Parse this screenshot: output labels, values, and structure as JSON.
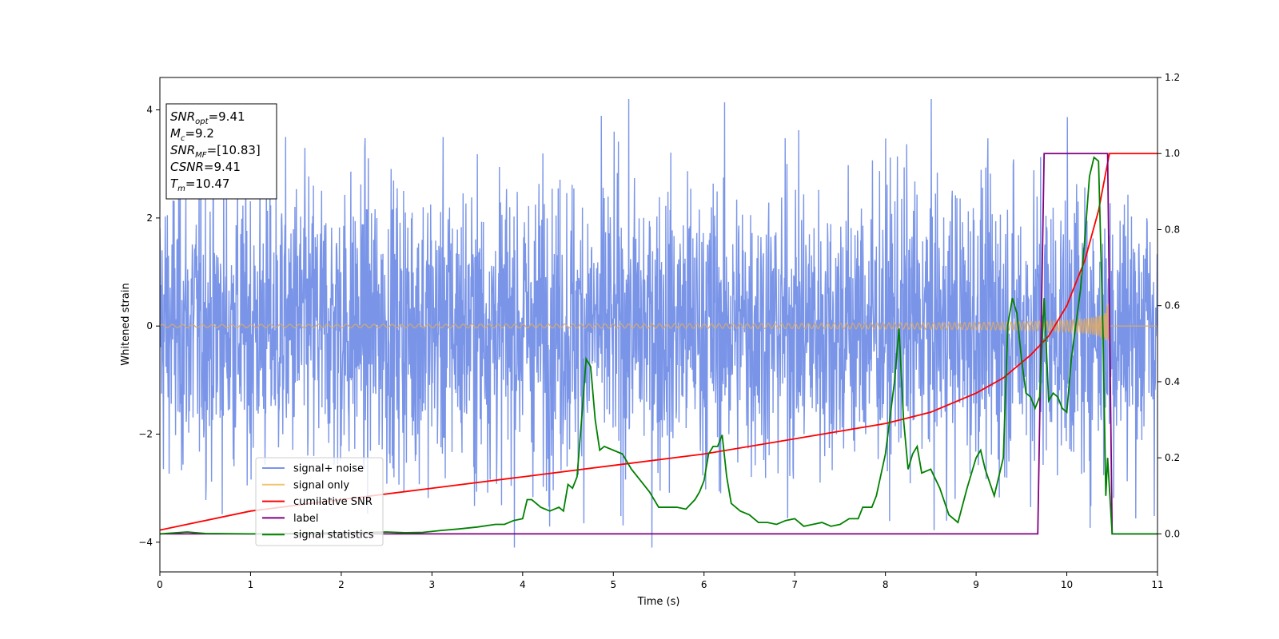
{
  "chart_data": {
    "type": "line",
    "xlabel": "Time (s)",
    "ylabel": "Whitened strain",
    "xlim": [
      0,
      11
    ],
    "ylim_left": [
      -4.55,
      4.6
    ],
    "ylim_right": [
      -0.1,
      1.2
    ],
    "x_ticks": [
      0,
      1,
      2,
      3,
      4,
      5,
      6,
      7,
      8,
      9,
      10,
      11
    ],
    "y_left_ticks": [
      -4,
      -2,
      0,
      2,
      4
    ],
    "y_left_tick_labels": [
      "−4",
      "−2",
      "0",
      "2",
      "4"
    ],
    "y_right_ticks": [
      0.0,
      0.2,
      0.4,
      0.6,
      0.8,
      1.0,
      1.2
    ],
    "y_right_tick_labels": [
      "0.0",
      "0.2",
      "0.4",
      "0.6",
      "0.8",
      "1.0",
      "1.2"
    ],
    "annotation": {
      "lines": [
        {
          "main": "SNR",
          "sub": "opt",
          "rest": "=9.41"
        },
        {
          "main": "M",
          "sub": "c",
          "rest": "=9.2"
        },
        {
          "main": "SNR",
          "sub": "MF",
          "rest": "=[10.83]"
        },
        {
          "main": "CSNR",
          "sub": "",
          "rest": "=9.41"
        },
        {
          "main": "T",
          "sub": "m",
          "rest": "=10.47"
        }
      ]
    },
    "legend_position": "lower-left",
    "series": [
      {
        "name": "signal+ noise",
        "color": "#7a95e8",
        "axis": "left",
        "kind": "noise",
        "approx_amplitude": 2.2,
        "peak_range": [
          -4.1,
          4.2
        ]
      },
      {
        "name": "signal only",
        "color": "#f2c46d",
        "axis": "left",
        "kind": "chirp",
        "start_amplitude": 0.03,
        "end_amplitude": 0.85,
        "merger_time": 10.47
      },
      {
        "name": "cumilative SNR",
        "color": "#ff0000",
        "axis": "right",
        "x": [
          0,
          1,
          2,
          3,
          4,
          5,
          6,
          7,
          8,
          8.5,
          9,
          9.3,
          9.6,
          9.8,
          10,
          10.2,
          10.35,
          10.47,
          11
        ],
        "y": [
          0.01,
          0.06,
          0.09,
          0.12,
          0.15,
          0.18,
          0.21,
          0.25,
          0.29,
          0.32,
          0.37,
          0.41,
          0.47,
          0.52,
          0.6,
          0.72,
          0.85,
          1.0,
          1.0
        ]
      },
      {
        "name": "label",
        "color": "#800080",
        "axis": "right",
        "x": [
          0,
          9.68,
          9.75,
          10.45,
          10.5,
          11
        ],
        "y": [
          0,
          0,
          1,
          1,
          0,
          0
        ]
      },
      {
        "name": "signal statistics",
        "color": "#008000",
        "axis": "right",
        "x": [
          0,
          0.3,
          0.5,
          1,
          1.5,
          2,
          2.3,
          2.5,
          2.7,
          2.9,
          3.1,
          3.3,
          3.5,
          3.7,
          3.8,
          3.9,
          4.0,
          4.05,
          4.1,
          4.2,
          4.3,
          4.4,
          4.45,
          4.5,
          4.55,
          4.6,
          4.65,
          4.7,
          4.75,
          4.8,
          4.85,
          4.9,
          5.0,
          5.1,
          5.2,
          5.3,
          5.4,
          5.5,
          5.6,
          5.7,
          5.8,
          5.9,
          5.95,
          6.0,
          6.05,
          6.1,
          6.15,
          6.2,
          6.25,
          6.3,
          6.4,
          6.5,
          6.6,
          6.7,
          6.8,
          6.9,
          7.0,
          7.05,
          7.1,
          7.2,
          7.3,
          7.4,
          7.5,
          7.6,
          7.7,
          7.75,
          7.8,
          7.85,
          7.9,
          8.0,
          8.1,
          8.15,
          8.2,
          8.25,
          8.3,
          8.35,
          8.4,
          8.5,
          8.6,
          8.7,
          8.8,
          8.9,
          9.0,
          9.05,
          9.1,
          9.2,
          9.3,
          9.35,
          9.4,
          9.45,
          9.5,
          9.55,
          9.6,
          9.65,
          9.7,
          9.75,
          9.8,
          9.85,
          9.9,
          9.95,
          10.0,
          10.05,
          10.1,
          10.15,
          10.2,
          10.25,
          10.3,
          10.35,
          10.4,
          10.43,
          10.45,
          10.5,
          10.6,
          10.8,
          11
        ],
        "y": [
          0,
          0.005,
          0.001,
          0,
          0.001,
          0.003,
          0.004,
          0.005,
          0.003,
          0.004,
          0.009,
          0.013,
          0.018,
          0.025,
          0.025,
          0.035,
          0.04,
          0.09,
          0.09,
          0.07,
          0.06,
          0.07,
          0.06,
          0.13,
          0.12,
          0.15,
          0.3,
          0.46,
          0.44,
          0.3,
          0.22,
          0.23,
          0.22,
          0.21,
          0.17,
          0.14,
          0.11,
          0.07,
          0.07,
          0.07,
          0.065,
          0.09,
          0.11,
          0.14,
          0.21,
          0.23,
          0.23,
          0.26,
          0.15,
          0.08,
          0.06,
          0.05,
          0.03,
          0.03,
          0.025,
          0.035,
          0.04,
          0.03,
          0.02,
          0.025,
          0.03,
          0.02,
          0.025,
          0.04,
          0.04,
          0.07,
          0.07,
          0.07,
          0.1,
          0.21,
          0.4,
          0.54,
          0.3,
          0.17,
          0.21,
          0.23,
          0.16,
          0.17,
          0.12,
          0.05,
          0.03,
          0.12,
          0.2,
          0.22,
          0.17,
          0.1,
          0.2,
          0.55,
          0.62,
          0.58,
          0.46,
          0.37,
          0.36,
          0.33,
          0.36,
          0.62,
          0.35,
          0.37,
          0.36,
          0.33,
          0.32,
          0.46,
          0.55,
          0.64,
          0.78,
          0.94,
          0.99,
          0.98,
          0.52,
          0.1,
          0.2,
          0,
          0,
          0,
          0
        ]
      }
    ]
  }
}
